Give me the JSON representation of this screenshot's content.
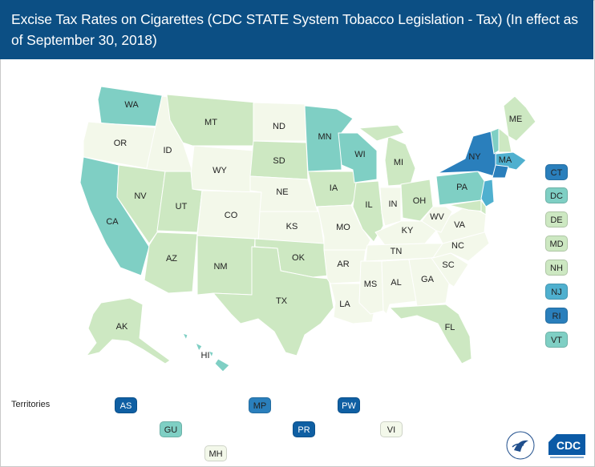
{
  "title": "Excise Tax Rates on Cigarettes (CDC STATE System Tobacco Legislation - Tax) (In effect as of September 30, 2018)",
  "colors": {
    "level_1": "#f3f8ea",
    "level_2": "#cde8c2",
    "level_3": "#7fcfc4",
    "level_4": "#4fb0cf",
    "level_5": "#2a7fbc",
    "level_6": "#0f5fa3",
    "header": "#0c4f84"
  },
  "states": {
    "WA": "WA",
    "OR": "OR",
    "CA": "CA",
    "ID": "ID",
    "NV": "NV",
    "MT": "MT",
    "WY": "WY",
    "UT": "UT",
    "AZ": "AZ",
    "CO": "CO",
    "NM": "NM",
    "ND": "ND",
    "SD": "SD",
    "NE": "NE",
    "KS": "KS",
    "OK": "OK",
    "TX": "TX",
    "MN": "MN",
    "IA": "IA",
    "MO": "MO",
    "AR": "AR",
    "LA": "LA",
    "WI": "WI",
    "IL": "IL",
    "MI": "MI",
    "IN": "IN",
    "OH": "OH",
    "KY": "KY",
    "TN": "TN",
    "MS": "MS",
    "AL": "AL",
    "GA": "GA",
    "FL": "FL",
    "SC": "SC",
    "NC": "NC",
    "VA": "VA",
    "WV": "WV",
    "PA": "PA",
    "NY": "NY",
    "ME": "ME",
    "MA": "MA",
    "AK": "AK",
    "HI": "HI"
  },
  "small_states": [
    {
      "code": "CT",
      "level": 5
    },
    {
      "code": "DC",
      "level": 3
    },
    {
      "code": "DE",
      "level": 2
    },
    {
      "code": "MD",
      "level": 2
    },
    {
      "code": "NH",
      "level": 2
    },
    {
      "code": "NJ",
      "level": 4
    },
    {
      "code": "RI",
      "level": 5
    },
    {
      "code": "VT",
      "level": 3
    }
  ],
  "territories_label": "Territories",
  "territories": [
    {
      "code": "AS",
      "level": 6
    },
    {
      "code": "MP",
      "level": 5
    },
    {
      "code": "PW",
      "level": 6
    },
    {
      "code": "GU",
      "level": 3
    },
    {
      "code": "PR",
      "level": 6
    },
    {
      "code": "VI",
      "level": 1
    },
    {
      "code": "MH",
      "level": 1
    }
  ],
  "logos": {
    "hhs": "DEPARTMENT OF HEALTH & HUMAN SERVICES · USA",
    "cdc": "CDC"
  }
}
